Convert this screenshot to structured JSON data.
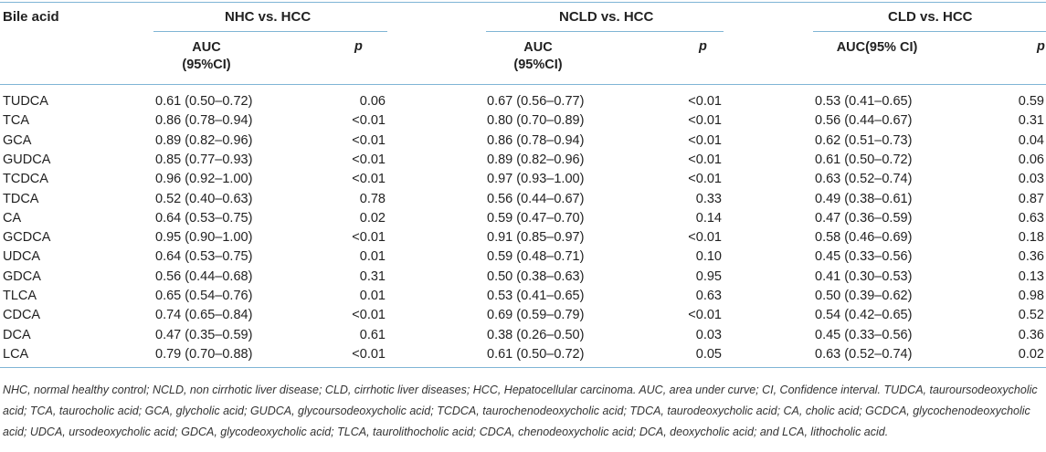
{
  "table": {
    "header": {
      "first_col": "Bile acid",
      "groups": [
        "NHC vs. HCC",
        "NCLD vs. HCC",
        "CLD vs. HCC"
      ],
      "auc_two_line_top": "AUC",
      "auc_two_line_bottom": "(95%CI)",
      "auc_one_line": "AUC(95% CI)",
      "p": "p"
    },
    "rows": [
      {
        "acid": "TUDCA",
        "c1": "0.61 (0.50–0.72)",
        "p1": "0.06",
        "c2": "0.67 (0.56–0.77)",
        "p2": "<0.01",
        "c3": "0.53 (0.41–0.65)",
        "p3": "0.59"
      },
      {
        "acid": "TCA",
        "c1": "0.86 (0.78–0.94)",
        "p1": "<0.01",
        "c2": "0.80 (0.70–0.89)",
        "p2": "<0.01",
        "c3": "0.56 (0.44–0.67)",
        "p3": "0.31"
      },
      {
        "acid": "GCA",
        "c1": "0.89 (0.82–0.96)",
        "p1": "<0.01",
        "c2": "0.86 (0.78–0.94)",
        "p2": "<0.01",
        "c3": "0.62 (0.51–0.73)",
        "p3": "0.04"
      },
      {
        "acid": "GUDCA",
        "c1": "0.85 (0.77–0.93)",
        "p1": "<0.01",
        "c2": "0.89 (0.82–0.96)",
        "p2": "<0.01",
        "c3": "0.61 (0.50–0.72)",
        "p3": "0.06"
      },
      {
        "acid": "TCDCA",
        "c1": "0.96 (0.92–1.00)",
        "p1": "<0.01",
        "c2": "0.97 (0.93–1.00)",
        "p2": "<0.01",
        "c3": "0.63 (0.52–0.74)",
        "p3": "0.03"
      },
      {
        "acid": "TDCA",
        "c1": "0.52 (0.40–0.63)",
        "p1": "0.78",
        "c2": "0.56 (0.44–0.67)",
        "p2": "0.33",
        "c3": "0.49 (0.38–0.61)",
        "p3": "0.87"
      },
      {
        "acid": "CA",
        "c1": "0.64 (0.53–0.75)",
        "p1": "0.02",
        "c2": "0.59 (0.47–0.70)",
        "p2": "0.14",
        "c3": "0.47 (0.36–0.59)",
        "p3": "0.63"
      },
      {
        "acid": "GCDCA",
        "c1": "0.95 (0.90–1.00)",
        "p1": "<0.01",
        "c2": "0.91 (0.85–0.97)",
        "p2": "<0.01",
        "c3": "0.58 (0.46–0.69)",
        "p3": "0.18"
      },
      {
        "acid": "UDCA",
        "c1": "0.64 (0.53–0.75)",
        "p1": "0.01",
        "c2": "0.59 (0.48–0.71)",
        "p2": "0.10",
        "c3": "0.45 (0.33–0.56)",
        "p3": "0.36"
      },
      {
        "acid": "GDCA",
        "c1": "0.56 (0.44–0.68)",
        "p1": "0.31",
        "c2": "0.50 (0.38–0.63)",
        "p2": "0.95",
        "c3": "0.41 (0.30–0.53)",
        "p3": "0.13"
      },
      {
        "acid": "TLCA",
        "c1": "0.65 (0.54–0.76)",
        "p1": "0.01",
        "c2": "0.53 (0.41–0.65)",
        "p2": "0.63",
        "c3": "0.50 (0.39–0.62)",
        "p3": "0.98"
      },
      {
        "acid": "CDCA",
        "c1": "0.74 (0.65–0.84)",
        "p1": "<0.01",
        "c2": "0.69 (0.59–0.79)",
        "p2": "<0.01",
        "c3": "0.54 (0.42–0.65)",
        "p3": "0.52"
      },
      {
        "acid": "DCA",
        "c1": "0.47 (0.35–0.59)",
        "p1": "0.61",
        "c2": "0.38 (0.26–0.50)",
        "p2": "0.03",
        "c3": "0.45 (0.33–0.56)",
        "p3": "0.36"
      },
      {
        "acid": "LCA",
        "c1": "0.79 (0.70–0.88)",
        "p1": "<0.01",
        "c2": "0.61 (0.50–0.72)",
        "p2": "0.05",
        "c3": "0.63 (0.52–0.74)",
        "p3": "0.02"
      }
    ],
    "footnote": "NHC, normal healthy control; NCLD, non cirrhotic liver disease; CLD, cirrhotic liver diseases; HCC, Hepatocellular carcinoma. AUC, area under curve; CI, Confidence interval. TUDCA, tauroursodeoxycholic acid; TCA, taurocholic acid; GCA, glycholic acid; GUDCA, glycoursodeoxycholic acid; TCDCA, taurochenodeoxycholic acid; TDCA, taurodeoxycholic acid; CA, cholic acid; GCDCA, glycochenodeoxycholic acid; UDCA, ursodeoxycholic acid; GDCA, glycodeoxycholic acid; TLCA, taurolithocholic acid; CDCA, chenodeoxycholic acid; DCA, deoxycholic acid; and LCA, lithocholic acid."
  }
}
